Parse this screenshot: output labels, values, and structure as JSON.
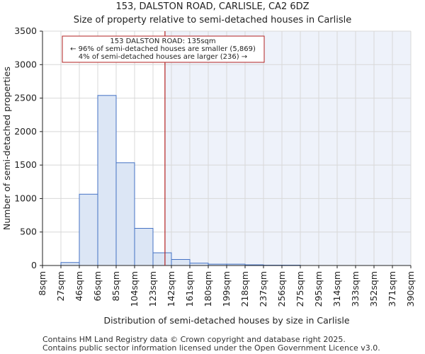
{
  "chart_data": {
    "type": "bar",
    "title": "153, DALSTON ROAD, CARLISLE, CA2 6DZ",
    "subtitle": "Size of property relative to semi-detached houses in Carlisle",
    "xlabel": "Distribution of semi-detached houses by size in Carlisle",
    "ylabel": "Number of semi-detached properties",
    "ylim": [
      0,
      3500
    ],
    "yticks": [
      0,
      500,
      1000,
      1500,
      2000,
      2500,
      3000,
      3500
    ],
    "xtick_labels": [
      "8sqm",
      "27sqm",
      "46sqm",
      "66sqm",
      "85sqm",
      "104sqm",
      "123sqm",
      "142sqm",
      "161sqm",
      "180sqm",
      "199sqm",
      "218sqm",
      "237sqm",
      "256sqm",
      "275sqm",
      "295sqm",
      "314sqm",
      "333sqm",
      "352sqm",
      "371sqm",
      "390sqm"
    ],
    "values": [
      0,
      45,
      1065,
      2540,
      1535,
      555,
      190,
      90,
      35,
      20,
      20,
      10,
      5,
      5,
      0,
      0,
      0,
      0,
      0,
      0
    ],
    "grid": true,
    "marker": {
      "value": 135,
      "bin_position": 6.65,
      "color": "#b22222"
    },
    "annotation": {
      "lines": [
        "153 DALSTON ROAD: 135sqm",
        "← 96% of semi-detached houses are smaller (5,869)",
        "4% of semi-detached houses are larger (236) →"
      ]
    },
    "colors": {
      "bar_fill": "#dce6f5",
      "bar_stroke": "#4472c4",
      "shade": "#eef2fa",
      "grid": "#d8d8d8"
    }
  },
  "footer": {
    "line1": "Contains HM Land Registry data © Crown copyright and database right 2025.",
    "line2": "Contains public sector information licensed under the Open Government Licence v3.0."
  }
}
